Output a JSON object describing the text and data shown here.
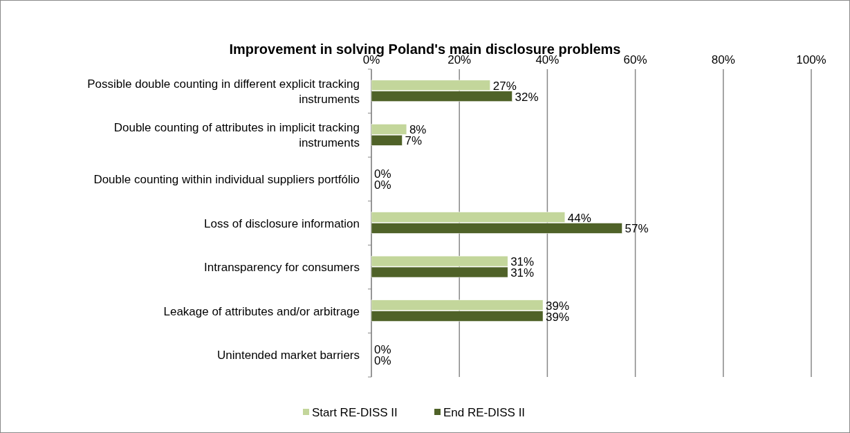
{
  "chart_data": {
    "type": "bar",
    "orientation": "horizontal",
    "title": "Improvement in solving Poland's main disclosure problems",
    "categories": [
      "Possible double counting in different explicit tracking instruments",
      "Double counting of attributes in implicit tracking instruments",
      "Double counting within individual suppliers portfólio",
      "Loss of disclosure information",
      "Intransparency for consumers",
      "Leakage of attributes and/or arbitrage",
      "Unintended market barriers"
    ],
    "series": [
      {
        "name": "Start RE-DISS II",
        "color": "#c3d69b",
        "values": [
          27,
          8,
          0,
          44,
          31,
          39,
          0
        ],
        "value_labels": [
          "27%",
          "8%",
          "0%",
          "44%",
          "31%",
          "39%",
          "0%"
        ]
      },
      {
        "name": "End RE-DISS II",
        "color": "#4f6228",
        "values": [
          32,
          7,
          0,
          57,
          31,
          39,
          0
        ],
        "value_labels": [
          "32%",
          "7%",
          "0%",
          "57%",
          "31%",
          "39%",
          "0%"
        ]
      }
    ],
    "xlim": [
      0,
      100
    ],
    "xticks": [
      {
        "value": 0,
        "label": "0%"
      },
      {
        "value": 20,
        "label": "20%"
      },
      {
        "value": 40,
        "label": "40%"
      },
      {
        "value": 60,
        "label": "60%"
      },
      {
        "value": 80,
        "label": "80%"
      },
      {
        "value": 100,
        "label": "100%"
      }
    ],
    "grid": "x",
    "legend": "bottom"
  }
}
